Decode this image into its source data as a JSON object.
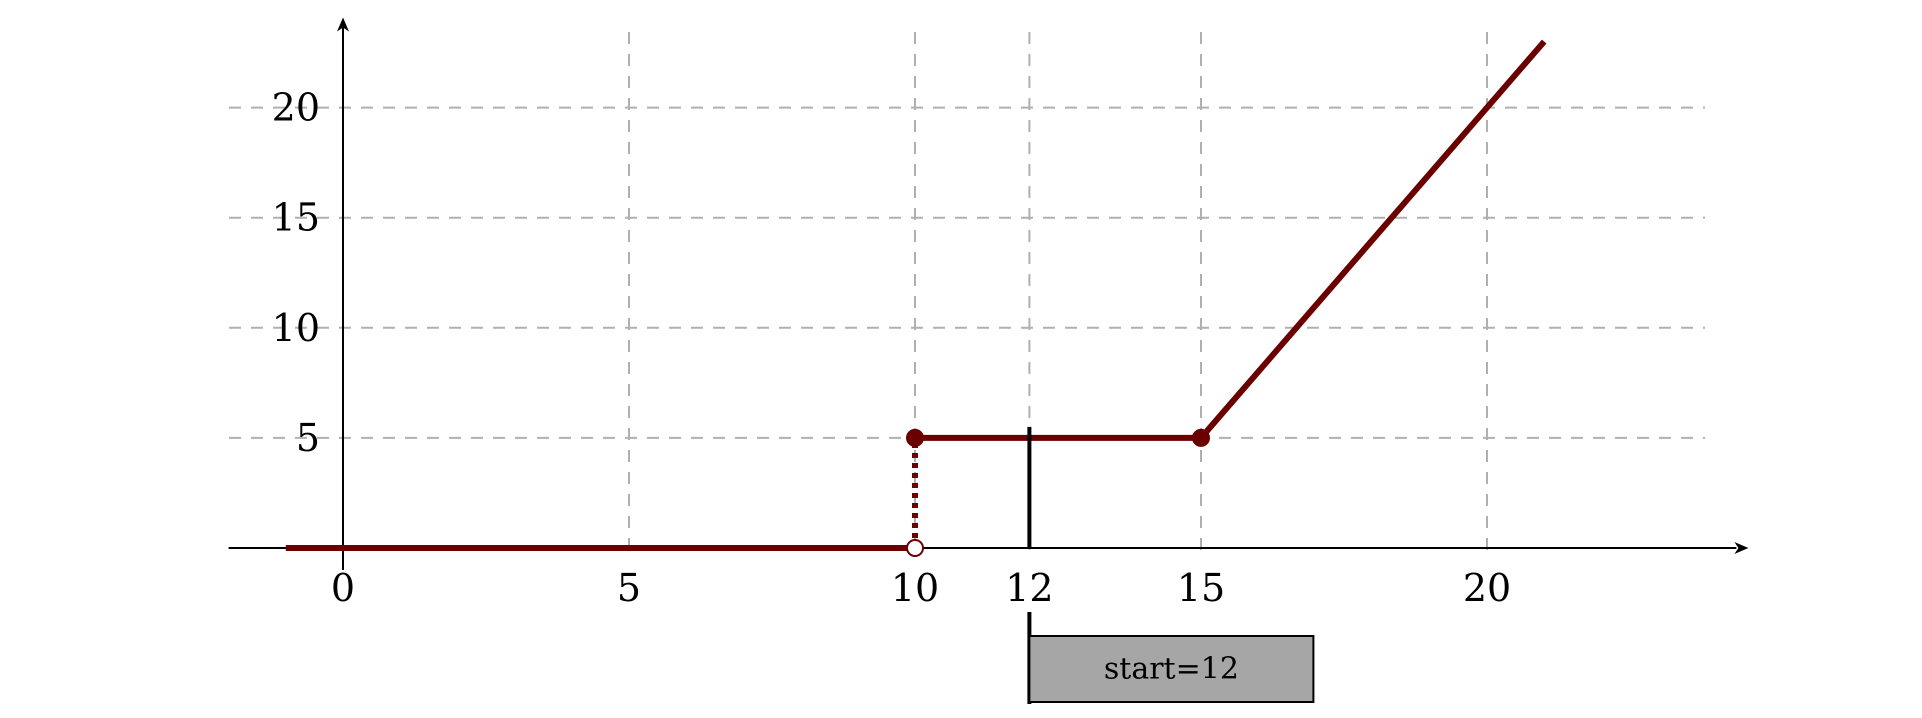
{
  "chart_data": {
    "type": "line",
    "title": "",
    "xlabel": "",
    "ylabel": "",
    "xlim": [
      -2,
      24.5
    ],
    "ylim": [
      -1,
      24
    ],
    "grid": true,
    "x_ticks": [
      0,
      5,
      10,
      12,
      15,
      20
    ],
    "x_tick_labels": [
      "0",
      "5",
      "10",
      "12",
      "15",
      "20"
    ],
    "x_grid": [
      5,
      10,
      12,
      15,
      20
    ],
    "y_ticks": [
      5,
      10,
      15,
      20
    ],
    "y_tick_labels": [
      "5",
      "10",
      "15",
      "20"
    ],
    "colors": {
      "series": "#6b0000",
      "grid": "#b0b0b0",
      "axis": "#000000",
      "marker_line": "#000000",
      "annotation_fill": "#a6a6a6"
    },
    "series": [
      {
        "segments": [
          {
            "style": "solid",
            "points": [
              [
                -1,
                0
              ],
              [
                10,
                0
              ]
            ]
          },
          {
            "style": "dotted",
            "points": [
              [
                10,
                0
              ],
              [
                10,
                5
              ]
            ]
          },
          {
            "style": "solid",
            "points": [
              [
                10,
                5
              ],
              [
                15,
                5
              ]
            ]
          },
          {
            "style": "solid",
            "points": [
              [
                15,
                5
              ],
              [
                21,
                23
              ]
            ]
          }
        ],
        "markers": [
          {
            "x": 10,
            "y": 0,
            "filled": false
          },
          {
            "x": 10,
            "y": 5,
            "filled": true
          },
          {
            "x": 15,
            "y": 5,
            "filled": true
          }
        ]
      }
    ],
    "vertical_marker": {
      "x": 12,
      "y_top": 5.5
    },
    "annotation": {
      "text": "start=12",
      "x": 12
    }
  }
}
